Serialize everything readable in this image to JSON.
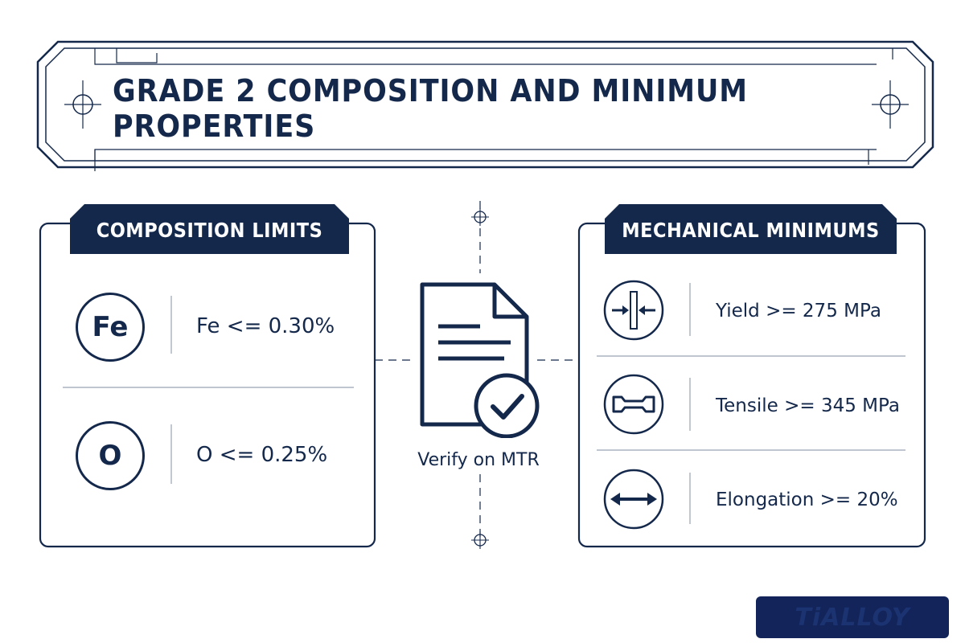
{
  "title": "GRADE 2 COMPOSITION AND MINIMUM PROPERTIES",
  "composition": {
    "header": "COMPOSITION LIMITS",
    "rows": [
      {
        "symbol": "Fe",
        "text": "Fe <= 0.30%"
      },
      {
        "symbol": "O",
        "text": "O <= 0.25%"
      }
    ]
  },
  "center": {
    "label": "Verify on MTR",
    "icon": "document-check-icon"
  },
  "mechanical": {
    "header": "MECHANICAL MINIMUMS",
    "rows": [
      {
        "icon": "compression-arrows-icon",
        "text": "Yield >= 275 MPa"
      },
      {
        "icon": "tensile-specimen-icon",
        "text": "Tensile >= 345 MPa"
      },
      {
        "icon": "elongation-arrow-icon",
        "text": "Elongation >= 20%"
      }
    ]
  },
  "logo": {
    "text": "TiALLOY"
  },
  "colors": {
    "navy": "#14284b",
    "logo_bg": "#13245a",
    "background": "#ffffff"
  }
}
